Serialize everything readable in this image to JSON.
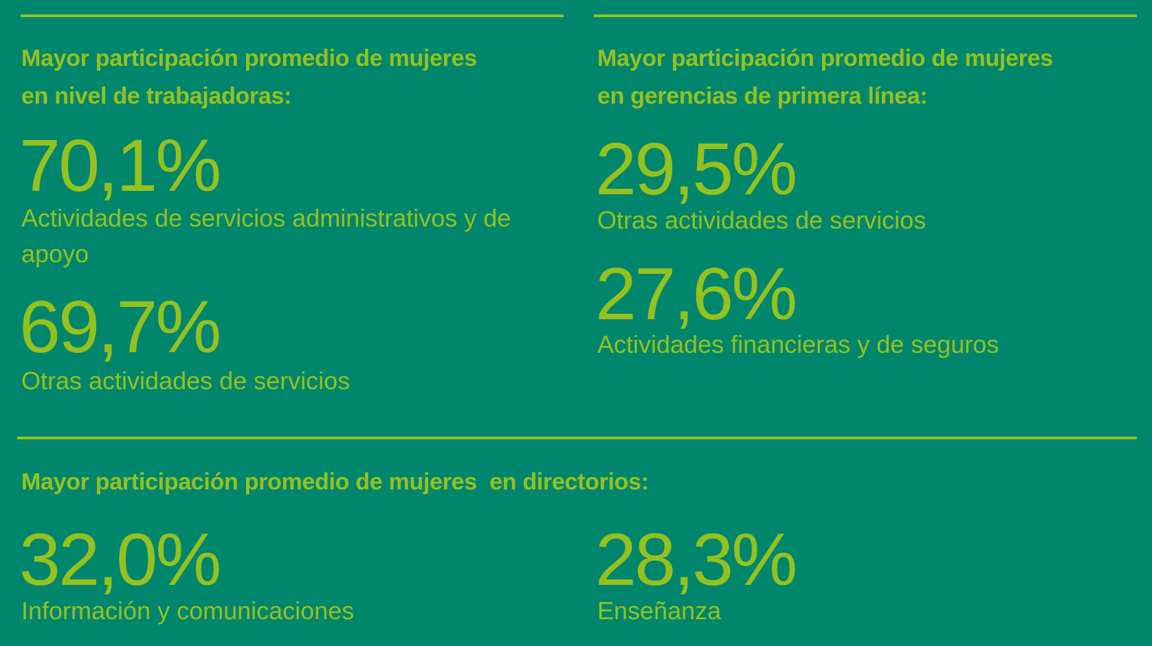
{
  "colors": {
    "background": "#00866c",
    "accent": "#95c11f"
  },
  "sections": [
    {
      "heading_line1": "Mayor participación promedio de mujeres",
      "heading_line2": "en nivel de trabajadoras:",
      "stats": [
        {
          "value": "70,1%",
          "label_line1": "Actividades de servicios administrativos y de",
          "label_line2": "apoyo"
        },
        {
          "value": "69,7%",
          "label": "Otras actividades de servicios"
        }
      ]
    },
    {
      "heading_line1": "Mayor participación promedio de mujeres",
      "heading_line2": "en gerencias de primera línea:",
      "stats": [
        {
          "value": "29,5%",
          "label": "Otras actividades de servicios"
        },
        {
          "value": "27,6%",
          "label": "Actividades financieras y de seguros"
        }
      ]
    },
    {
      "heading": "Mayor participación promedio de mujeres  en directorios:",
      "stats": [
        {
          "value": "32,0%",
          "label": "Información y comunicaciones"
        },
        {
          "value": "28,3%",
          "label": "Enseñanza"
        }
      ]
    }
  ]
}
